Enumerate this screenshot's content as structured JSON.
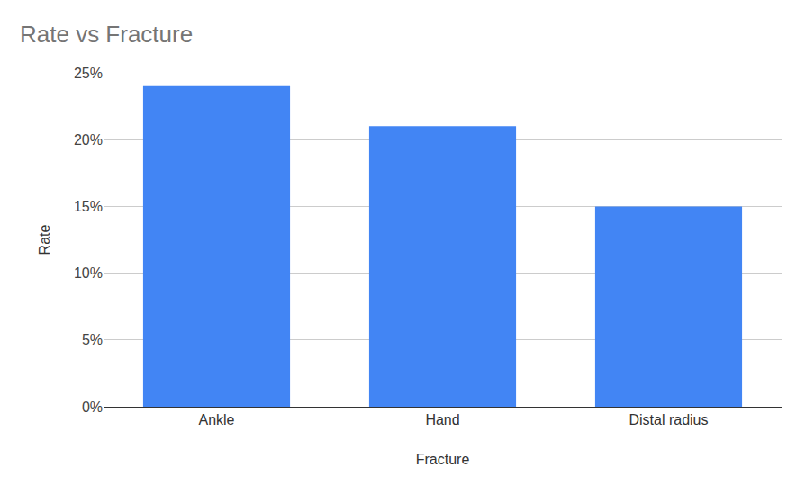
{
  "chart_data": {
    "type": "bar",
    "title": "Rate vs Fracture",
    "x_label": "Fracture",
    "y_label": "Rate",
    "categories": [
      "Ankle",
      "Hand",
      "Distal radius"
    ],
    "values": [
      24,
      21,
      15
    ],
    "color": "#4285f4",
    "ylim": [
      0,
      25
    ],
    "yticks": [
      {
        "value": 0,
        "label": "0%"
      },
      {
        "value": 5,
        "label": "5%"
      },
      {
        "value": 10,
        "label": "10%"
      },
      {
        "value": 15,
        "label": "15%"
      },
      {
        "value": 20,
        "label": "20%"
      },
      {
        "value": 25,
        "label": "25%"
      }
    ],
    "grid": true
  }
}
